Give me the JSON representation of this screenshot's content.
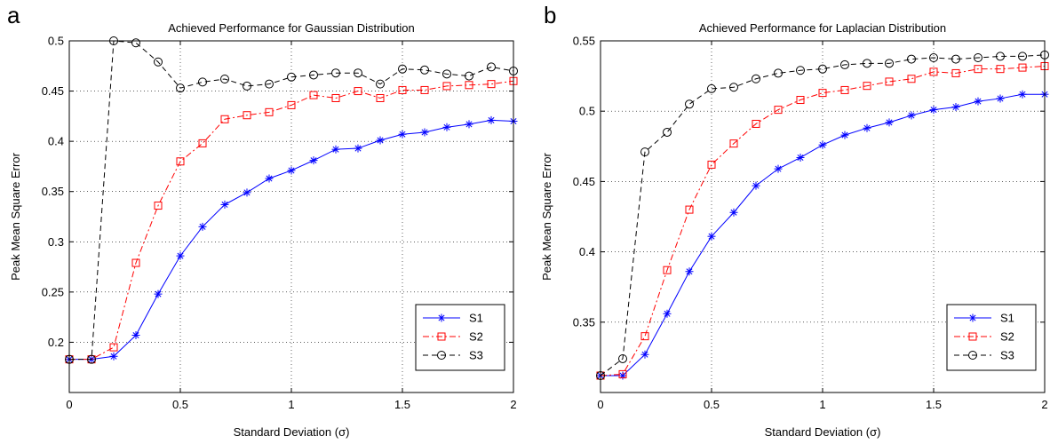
{
  "panel_letters": [
    "a",
    "b"
  ],
  "chart_data": [
    {
      "type": "line",
      "panel": "a",
      "title": "Achieved Performance for Gaussian Distribution",
      "xlabel": "Standard Deviation (σ)",
      "ylabel": "Peak Mean Square Error",
      "xlim": [
        0,
        2
      ],
      "ylim": [
        0.15,
        0.5
      ],
      "xticks": [
        0,
        0.5,
        1,
        1.5,
        2
      ],
      "xtick_labels": [
        "0",
        "0.5",
        "1",
        "1.5",
        "2"
      ],
      "yticks": [
        0.2,
        0.25,
        0.3,
        0.35,
        0.4,
        0.45,
        0.5
      ],
      "ytick_labels": [
        "0.2",
        "0.25",
        "0.3",
        "0.35",
        "0.4",
        "0.45",
        "0.5"
      ],
      "grid": true,
      "legend_position": "bottom-right",
      "x": [
        0,
        0.1,
        0.2,
        0.3,
        0.4,
        0.5,
        0.6,
        0.7,
        0.8,
        0.9,
        1.0,
        1.1,
        1.2,
        1.3,
        1.4,
        1.5,
        1.6,
        1.7,
        1.8,
        1.9,
        2.0
      ],
      "series": [
        {
          "name": "S1",
          "color": "#0000ff",
          "style": "solid",
          "marker": "asterisk",
          "values": [
            0.183,
            0.183,
            0.186,
            0.207,
            0.248,
            0.286,
            0.315,
            0.337,
            0.349,
            0.363,
            0.371,
            0.381,
            0.392,
            0.393,
            0.401,
            0.407,
            0.409,
            0.414,
            0.417,
            0.421,
            0.42
          ]
        },
        {
          "name": "S2",
          "color": "#ff0000",
          "style": "dashdot",
          "marker": "square",
          "values": [
            0.183,
            0.183,
            0.195,
            0.279,
            0.336,
            0.38,
            0.398,
            0.422,
            0.426,
            0.429,
            0.436,
            0.446,
            0.443,
            0.45,
            0.443,
            0.451,
            0.451,
            0.455,
            0.456,
            0.457,
            0.46
          ]
        },
        {
          "name": "S3",
          "color": "#000000",
          "style": "dashed",
          "marker": "circle",
          "values": [
            0.183,
            0.183,
            0.5,
            0.498,
            0.479,
            0.453,
            0.459,
            0.462,
            0.455,
            0.457,
            0.464,
            0.466,
            0.468,
            0.468,
            0.457,
            0.472,
            0.471,
            0.467,
            0.465,
            0.474,
            0.47
          ]
        }
      ]
    },
    {
      "type": "line",
      "panel": "b",
      "title": "Achieved Performance for Laplacian Distribution",
      "xlabel": "Standard Deviation (σ)",
      "ylabel": "Peak Mean Square Error",
      "xlim": [
        0,
        2
      ],
      "ylim": [
        0.3,
        0.55
      ],
      "xticks": [
        0,
        0.5,
        1,
        1.5,
        2
      ],
      "xtick_labels": [
        "0",
        "0.5",
        "1",
        "1.5",
        "2"
      ],
      "yticks": [
        0.35,
        0.4,
        0.45,
        0.5,
        0.55
      ],
      "ytick_labels": [
        "0.35",
        "0.4",
        "0.45",
        "0.5",
        "0.55"
      ],
      "grid": true,
      "legend_position": "bottom-right",
      "x": [
        0,
        0.1,
        0.2,
        0.3,
        0.4,
        0.5,
        0.6,
        0.7,
        0.8,
        0.9,
        1.0,
        1.1,
        1.2,
        1.3,
        1.4,
        1.5,
        1.6,
        1.7,
        1.8,
        1.9,
        2.0
      ],
      "series": [
        {
          "name": "S1",
          "color": "#0000ff",
          "style": "solid",
          "marker": "asterisk",
          "values": [
            0.312,
            0.312,
            0.327,
            0.356,
            0.386,
            0.411,
            0.428,
            0.447,
            0.459,
            0.467,
            0.476,
            0.483,
            0.488,
            0.492,
            0.497,
            0.501,
            0.503,
            0.507,
            0.509,
            0.512,
            0.512
          ]
        },
        {
          "name": "S2",
          "color": "#ff0000",
          "style": "dashdot",
          "marker": "square",
          "values": [
            0.312,
            0.313,
            0.34,
            0.387,
            0.43,
            0.462,
            0.477,
            0.491,
            0.501,
            0.508,
            0.513,
            0.515,
            0.518,
            0.521,
            0.523,
            0.528,
            0.527,
            0.53,
            0.53,
            0.531,
            0.532
          ]
        },
        {
          "name": "S3",
          "color": "#000000",
          "style": "dashed",
          "marker": "circle",
          "values": [
            0.312,
            0.324,
            0.471,
            0.485,
            0.505,
            0.516,
            0.517,
            0.523,
            0.527,
            0.529,
            0.53,
            0.533,
            0.534,
            0.534,
            0.537,
            0.538,
            0.537,
            0.538,
            0.539,
            0.539,
            0.54
          ]
        }
      ]
    }
  ]
}
